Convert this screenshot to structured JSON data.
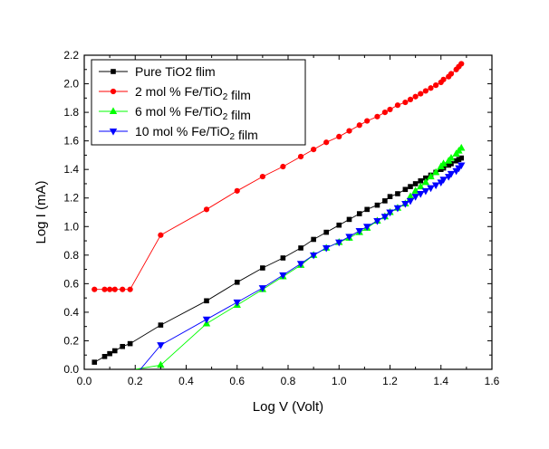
{
  "chart_data": {
    "type": "line",
    "title": "",
    "xlabel": "Log V (Volt)",
    "ylabel": "Log I (mA)",
    "xlim": [
      0.0,
      1.6
    ],
    "ylim": [
      0.0,
      2.2
    ],
    "xticks": [
      0.0,
      0.2,
      0.4,
      0.6,
      0.8,
      1.0,
      1.2,
      1.4,
      1.6
    ],
    "yticks": [
      0.0,
      0.2,
      0.4,
      0.6,
      0.8,
      1.0,
      1.2,
      1.4,
      1.6,
      1.8,
      2.0,
      2.2
    ],
    "xtick_labels": [
      "0.0",
      "0.2",
      "0.4",
      "0.6",
      "0.8",
      "1.0",
      "1.2",
      "1.4",
      "1.6"
    ],
    "ytick_labels": [
      "0.0",
      "0.2",
      "0.4",
      "0.6",
      "0.8",
      "1.0",
      "1.2",
      "1.4",
      "1.6",
      "1.8",
      "2.0",
      "2.2"
    ],
    "grid": false,
    "legend": "top-left",
    "series": [
      {
        "name": "Pure TiO2 flim",
        "legend_parts": [
          {
            "t": "Pure TiO2 flim",
            "sub": false
          }
        ],
        "color": "#000000",
        "marker": "square",
        "points": [
          [
            0.04,
            0.05
          ],
          [
            0.08,
            0.09
          ],
          [
            0.1,
            0.11
          ],
          [
            0.12,
            0.13
          ],
          [
            0.15,
            0.16
          ],
          [
            0.18,
            0.18
          ],
          [
            0.3,
            0.31
          ],
          [
            0.48,
            0.48
          ],
          [
            0.6,
            0.61
          ],
          [
            0.7,
            0.71
          ],
          [
            0.78,
            0.78
          ],
          [
            0.85,
            0.85
          ],
          [
            0.9,
            0.91
          ],
          [
            0.95,
            0.96
          ],
          [
            1.0,
            1.01
          ],
          [
            1.04,
            1.05
          ],
          [
            1.08,
            1.09
          ],
          [
            1.11,
            1.12
          ],
          [
            1.15,
            1.15
          ],
          [
            1.18,
            1.18
          ],
          [
            1.2,
            1.21
          ],
          [
            1.23,
            1.23
          ],
          [
            1.26,
            1.26
          ],
          [
            1.28,
            1.28
          ],
          [
            1.3,
            1.3
          ],
          [
            1.32,
            1.32
          ],
          [
            1.34,
            1.34
          ],
          [
            1.36,
            1.36
          ],
          [
            1.38,
            1.38
          ],
          [
            1.4,
            1.4
          ],
          [
            1.41,
            1.41
          ],
          [
            1.43,
            1.43
          ],
          [
            1.44,
            1.44
          ],
          [
            1.46,
            1.46
          ],
          [
            1.47,
            1.47
          ],
          [
            1.48,
            1.48
          ]
        ]
      },
      {
        "name": "2 mol % Fe/TiO2 film",
        "legend_parts": [
          {
            "t": "2 mol % Fe/TiO",
            "sub": false
          },
          {
            "t": "2",
            "sub": true
          },
          {
            "t": " film",
            "sub": false
          }
        ],
        "color": "#ff0000",
        "marker": "circle",
        "points": [
          [
            0.04,
            0.56
          ],
          [
            0.08,
            0.56
          ],
          [
            0.1,
            0.56
          ],
          [
            0.12,
            0.56
          ],
          [
            0.15,
            0.56
          ],
          [
            0.18,
            0.56
          ],
          [
            0.3,
            0.94
          ],
          [
            0.48,
            1.12
          ],
          [
            0.6,
            1.25
          ],
          [
            0.7,
            1.35
          ],
          [
            0.78,
            1.42
          ],
          [
            0.85,
            1.49
          ],
          [
            0.9,
            1.54
          ],
          [
            0.95,
            1.59
          ],
          [
            1.0,
            1.63
          ],
          [
            1.04,
            1.67
          ],
          [
            1.08,
            1.71
          ],
          [
            1.11,
            1.74
          ],
          [
            1.15,
            1.77
          ],
          [
            1.18,
            1.8
          ],
          [
            1.2,
            1.82
          ],
          [
            1.23,
            1.85
          ],
          [
            1.26,
            1.87
          ],
          [
            1.28,
            1.89
          ],
          [
            1.3,
            1.91
          ],
          [
            1.32,
            1.93
          ],
          [
            1.34,
            1.95
          ],
          [
            1.36,
            1.97
          ],
          [
            1.38,
            1.99
          ],
          [
            1.4,
            2.01
          ],
          [
            1.41,
            2.03
          ],
          [
            1.43,
            2.05
          ],
          [
            1.44,
            2.07
          ],
          [
            1.46,
            2.1
          ],
          [
            1.47,
            2.12
          ],
          [
            1.48,
            2.14
          ]
        ]
      },
      {
        "name": "6 mol % Fe/TiO2 film",
        "legend_parts": [
          {
            "t": "6 mol % Fe/TiO",
            "sub": false
          },
          {
            "t": "2",
            "sub": true
          },
          {
            "t": " film",
            "sub": false
          }
        ],
        "color": "#00ff00",
        "marker": "triangle-up",
        "line_start": [
          0.2,
          0.0
        ],
        "points": [
          [
            0.3,
            0.03
          ],
          [
            0.48,
            0.32
          ],
          [
            0.6,
            0.45
          ],
          [
            0.7,
            0.56
          ],
          [
            0.78,
            0.65
          ],
          [
            0.85,
            0.73
          ],
          [
            0.9,
            0.8
          ],
          [
            0.95,
            0.85
          ],
          [
            1.0,
            0.89
          ],
          [
            1.04,
            0.92
          ],
          [
            1.08,
            0.96
          ],
          [
            1.11,
            0.99
          ],
          [
            1.15,
            1.04
          ],
          [
            1.18,
            1.07
          ],
          [
            1.2,
            1.1
          ],
          [
            1.23,
            1.13
          ],
          [
            1.26,
            1.16
          ],
          [
            1.28,
            1.21
          ],
          [
            1.3,
            1.25
          ],
          [
            1.32,
            1.28
          ],
          [
            1.34,
            1.31
          ],
          [
            1.36,
            1.35
          ],
          [
            1.38,
            1.38
          ],
          [
            1.4,
            1.42
          ],
          [
            1.41,
            1.44
          ],
          [
            1.43,
            1.46
          ],
          [
            1.44,
            1.48
          ],
          [
            1.46,
            1.51
          ],
          [
            1.47,
            1.53
          ],
          [
            1.48,
            1.55
          ]
        ]
      },
      {
        "name": "10 mol % Fe/TiO2 film",
        "legend_parts": [
          {
            "t": "10 mol % Fe/TiO",
            "sub": false
          },
          {
            "t": "2",
            "sub": true
          },
          {
            "t": " film",
            "sub": false
          }
        ],
        "color": "#0000ff",
        "marker": "triangle-down",
        "line_start": [
          0.22,
          0.0
        ],
        "points": [
          [
            0.3,
            0.17
          ],
          [
            0.48,
            0.35
          ],
          [
            0.6,
            0.47
          ],
          [
            0.7,
            0.57
          ],
          [
            0.78,
            0.66
          ],
          [
            0.85,
            0.74
          ],
          [
            0.9,
            0.8
          ],
          [
            0.95,
            0.85
          ],
          [
            1.0,
            0.89
          ],
          [
            1.04,
            0.93
          ],
          [
            1.08,
            0.97
          ],
          [
            1.11,
            1.0
          ],
          [
            1.15,
            1.04
          ],
          [
            1.18,
            1.07
          ],
          [
            1.2,
            1.1
          ],
          [
            1.23,
            1.13
          ],
          [
            1.26,
            1.16
          ],
          [
            1.28,
            1.18
          ],
          [
            1.3,
            1.21
          ],
          [
            1.32,
            1.23
          ],
          [
            1.34,
            1.25
          ],
          [
            1.36,
            1.27
          ],
          [
            1.38,
            1.29
          ],
          [
            1.4,
            1.31
          ],
          [
            1.41,
            1.33
          ],
          [
            1.43,
            1.35
          ],
          [
            1.44,
            1.37
          ],
          [
            1.46,
            1.39
          ],
          [
            1.47,
            1.41
          ],
          [
            1.48,
            1.43
          ]
        ]
      }
    ]
  }
}
